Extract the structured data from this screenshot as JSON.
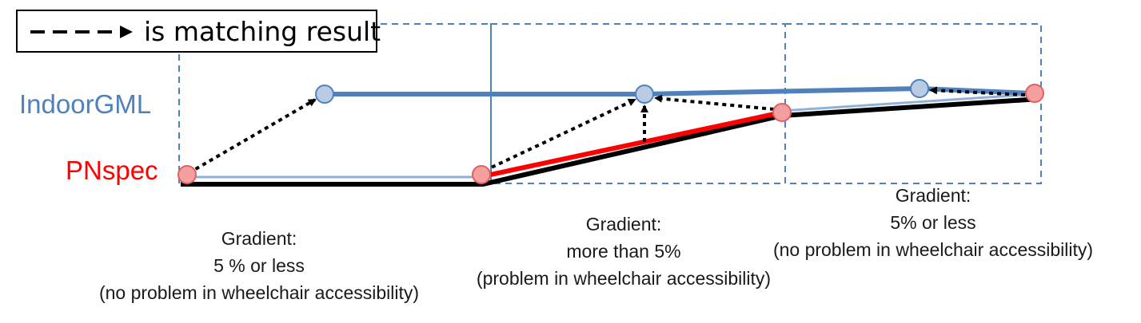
{
  "legend": {
    "text": "is matching result",
    "arrow_style": "dashed-arrow"
  },
  "layers": {
    "top": "IndoorGML",
    "bottom": "PNspec"
  },
  "colors": {
    "indoor": "#4f81bd",
    "pn": "#ff0000",
    "node_indoor": "#b8cce4",
    "node_pn": "#f4a0a0",
    "frame": "#4f81bd"
  },
  "segments": [
    {
      "line1": "Gradient:",
      "line2": "5 % or less",
      "line3": "(no problem in wheelchair accessibility)"
    },
    {
      "line1": "Gradient:",
      "line2": "more than 5%",
      "line3": "(problem in wheelchair accessibility)"
    },
    {
      "line1": "Gradient:",
      "line2": "5% or less",
      "line3": "(no problem in wheelchair accessibility)"
    }
  ]
}
